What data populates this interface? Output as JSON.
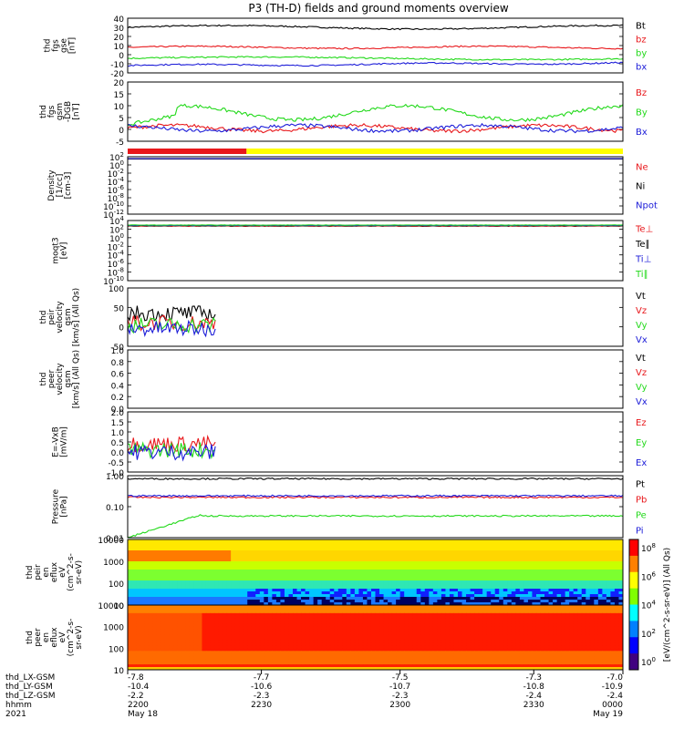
{
  "title": "P3 (TH-D) fields and ground moments overview",
  "colors": {
    "black": "#000000",
    "red": "#e8171b",
    "green": "#22d91a",
    "blue": "#1c1cd8",
    "yellow": "#ffff00"
  },
  "bars": {
    "mode_segments": [
      {
        "color": "red",
        "x0": 0,
        "x1": 0.24
      },
      {
        "color": "yellow",
        "x0": 0.24,
        "x1": 1
      }
    ]
  },
  "chart_data": [
    {
      "type": "line",
      "panel": "fgs_gse",
      "ylabel": [
        "thd",
        "fgs",
        "gse",
        "[nT]"
      ],
      "ylim": [
        -20,
        40
      ],
      "ticks": [
        "40",
        "30",
        "20",
        "10",
        "0",
        "-10",
        "-20"
      ],
      "series": [
        {
          "name": "Bt",
          "color": "black",
          "level": 30
        },
        {
          "name": "bz",
          "color": "red",
          "level": 8
        },
        {
          "name": "by",
          "color": "green",
          "level": -5
        },
        {
          "name": "bx",
          "color": "blue",
          "level": -12
        }
      ]
    },
    {
      "type": "line",
      "panel": "fgs_gsm_dgb",
      "ylabel": [
        "thd",
        "fgs",
        "gsm",
        "-DGB",
        "[nT]"
      ],
      "ylim": [
        -5,
        20
      ],
      "ticks": [
        "20",
        "15",
        "10",
        "5",
        "0",
        "-5"
      ],
      "series": [
        {
          "name": "Bz",
          "color": "red",
          "level": 1
        },
        {
          "name": "By",
          "color": "green",
          "level": 7
        },
        {
          "name": "Bx",
          "color": "blue",
          "level": 1
        }
      ]
    },
    {
      "type": "line",
      "panel": "density",
      "ylabel": [
        "Density",
        "[1/cc]",
        "[cm-3]"
      ],
      "ylim": [
        "10^-12",
        "10^2"
      ],
      "log": true,
      "ticks": [
        "10^2",
        "10^0",
        "10^-2",
        "10^-4",
        "10^-6",
        "10^-8",
        "10^-10",
        "10^-12"
      ],
      "series": [
        {
          "name": "Ne",
          "color": "red"
        },
        {
          "name": "Ni",
          "color": "black"
        },
        {
          "name": "Npot",
          "color": "blue"
        }
      ]
    },
    {
      "type": "line",
      "panel": "temperature",
      "ylabel": [
        "moqt3",
        "[eV]"
      ],
      "log": true,
      "ticks": [
        "10^4",
        "10^2",
        "10^0",
        "10^-2",
        "10^-4",
        "10^-6",
        "10^-8",
        "10^-10"
      ],
      "series": [
        {
          "name": "Te⊥",
          "color": "red"
        },
        {
          "name": "Te∥",
          "color": "black"
        },
        {
          "name": "Ti⊥",
          "color": "blue"
        },
        {
          "name": "Ti∥",
          "color": "green"
        }
      ]
    },
    {
      "type": "line",
      "panel": "peir_velocity",
      "ylabel": [
        "thd",
        "peir",
        "velocity",
        "gsm",
        "[km/s] (All Qs)"
      ],
      "ylim": [
        -50,
        100
      ],
      "ticks": [
        "100",
        "50",
        "0",
        "-50"
      ],
      "series": [
        {
          "name": "Vt",
          "color": "black"
        },
        {
          "name": "Vz",
          "color": "red"
        },
        {
          "name": "Vy",
          "color": "green"
        },
        {
          "name": "Vx",
          "color": "blue"
        }
      ]
    },
    {
      "type": "line",
      "panel": "peer_velocity",
      "ylabel": [
        "thd",
        "peer",
        "velocity",
        "gsm",
        "[km/s] (All Qs)"
      ],
      "ylim": [
        0,
        1
      ],
      "ticks": [
        "1.0",
        "0.8",
        "0.6",
        "0.4",
        "0.2",
        "0.0"
      ],
      "series": [
        {
          "name": "Vt",
          "color": "black"
        },
        {
          "name": "Vz",
          "color": "red"
        },
        {
          "name": "Vy",
          "color": "green"
        },
        {
          "name": "Vx",
          "color": "blue"
        }
      ]
    },
    {
      "type": "line",
      "panel": "efield",
      "ylabel": [
        "E=-VxB",
        "[mV/m]"
      ],
      "ylim": [
        -1,
        2
      ],
      "ticks": [
        "2.0",
        "1.5",
        "1.0",
        "0.5",
        "0.0",
        "-0.5",
        "-1.0"
      ],
      "series": [
        {
          "name": "Ez",
          "color": "red"
        },
        {
          "name": "Ey",
          "color": "green"
        },
        {
          "name": "Ex",
          "color": "blue"
        }
      ]
    },
    {
      "type": "line",
      "panel": "pressure",
      "ylabel": [
        "Pressure",
        "[nPa]"
      ],
      "log": true,
      "ticks": [
        "1.00",
        "0.10",
        "0.01"
      ],
      "series": [
        {
          "name": "Pt",
          "color": "black"
        },
        {
          "name": "Pb",
          "color": "red"
        },
        {
          "name": "Pe",
          "color": "green"
        },
        {
          "name": "Pi",
          "color": "blue"
        }
      ]
    },
    {
      "type": "heatmap",
      "panel": "peir_spectrogram",
      "ylabel": [
        "thd",
        "peir",
        "en",
        "eflux",
        "eV",
        "(cm^2-s-",
        "sr-eV)"
      ],
      "ticks": [
        "10000",
        "1000",
        "100",
        "10"
      ]
    },
    {
      "type": "heatmap",
      "panel": "peer_spectrogram",
      "ylabel": [
        "thd",
        "peer",
        "en",
        "eflux",
        "eV",
        "(cm^2-s-",
        "sr-eV)"
      ],
      "ticks": [
        "10000",
        "1000",
        "100",
        "10"
      ]
    }
  ],
  "colorbar": {
    "ticks": [
      "10^8",
      "10^6",
      "10^4",
      "10^2",
      "10^0"
    ],
    "label": "[eV/(cm^2-s-sr-eV)] (All Qs)"
  },
  "xaxis": {
    "rows": [
      {
        "label": "thd_LX-GSM",
        "values": [
          "-7.8",
          "-7.7",
          "-7.5",
          "-7.3",
          "-7.0"
        ]
      },
      {
        "label": "thd_LY-GSM",
        "values": [
          "-10.4",
          "-10.6",
          "-10.7",
          "-10.8",
          "-10.9"
        ]
      },
      {
        "label": "thd_LZ-GSM",
        "values": [
          "-2.2",
          "-2.3",
          "-2.3",
          "-2.4",
          "-2.4"
        ]
      },
      {
        "label": "hhmm",
        "values": [
          "2200",
          "2230",
          "2300",
          "2330",
          "0000"
        ]
      },
      {
        "label": "2021",
        "values": [
          "May 18",
          "",
          "",
          "",
          "May 19"
        ]
      }
    ]
  }
}
